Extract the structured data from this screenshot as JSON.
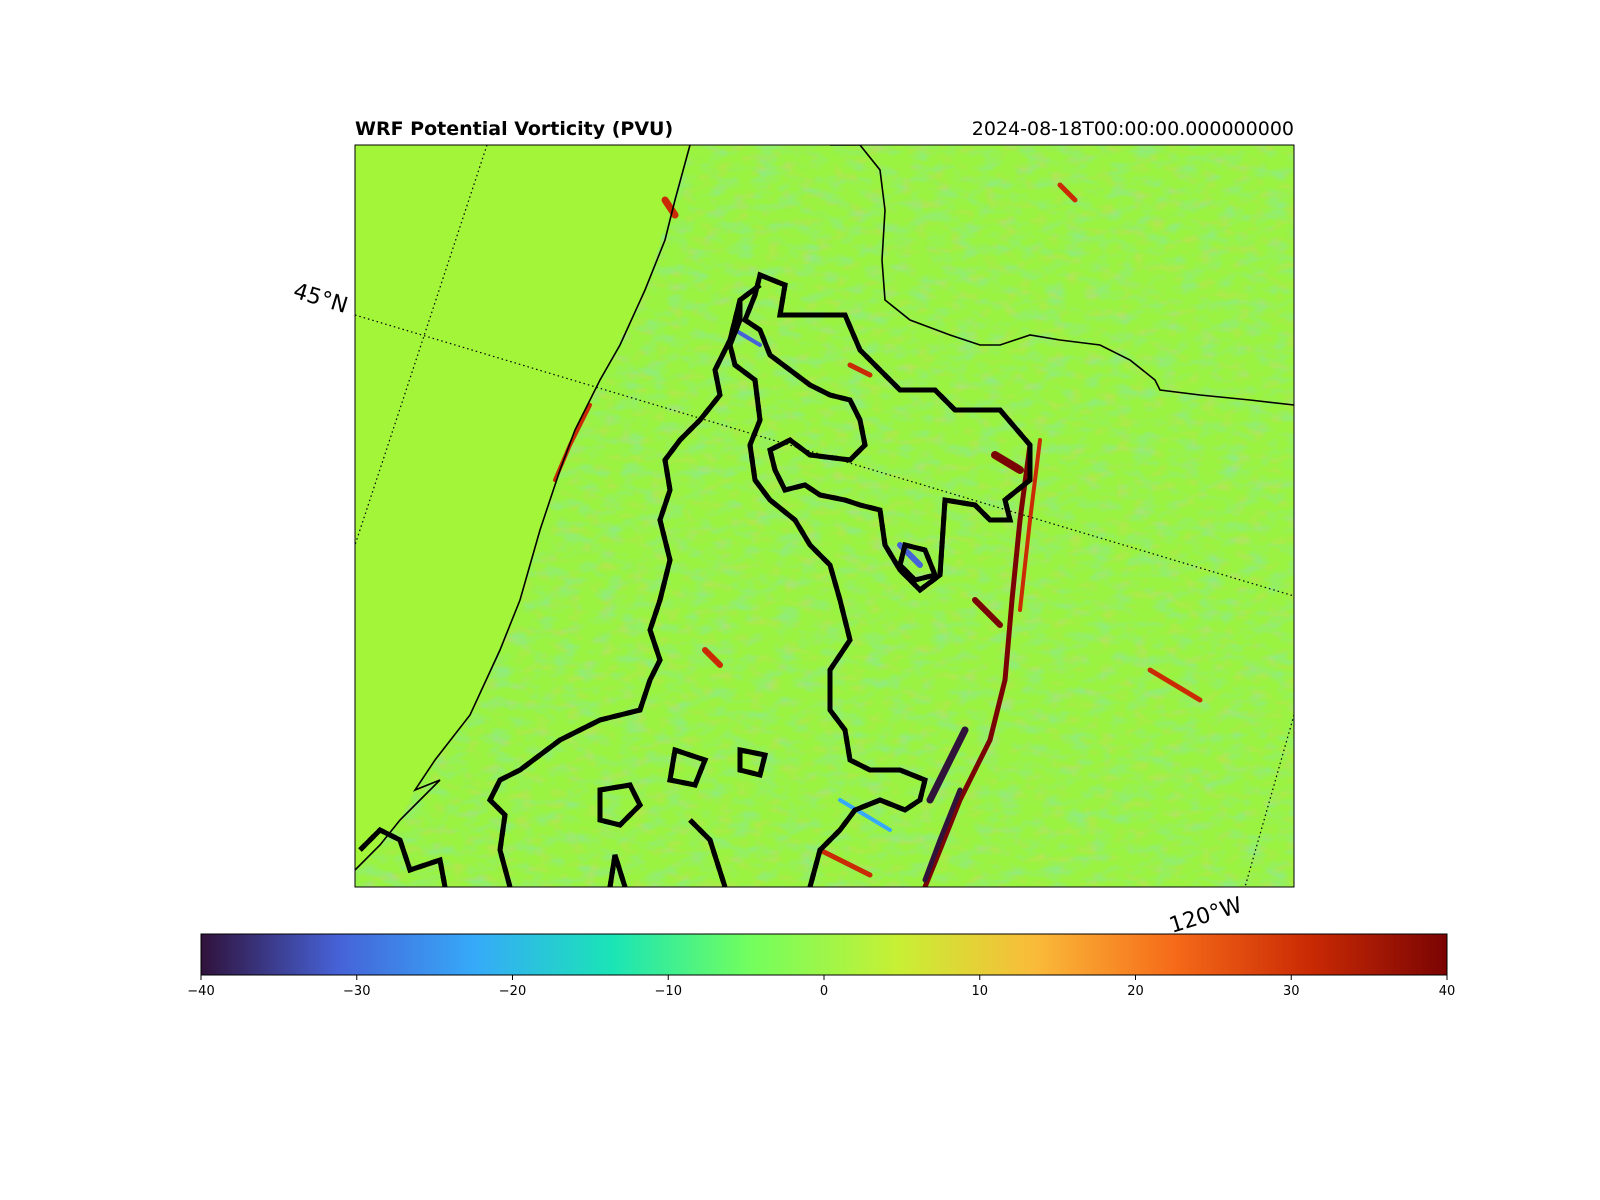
{
  "figure": {
    "title": "WRF Potential Vorticity (PVU)",
    "timestamp": "2024-08-18T00:00:00.000000000"
  },
  "map": {
    "type": "raster field with projected map overlay",
    "variable_label": "WRF Potential Vorticity (PVU)",
    "background_color": "#a3f53a",
    "gridline_labels": {
      "lat": "45°N",
      "lon": "120°W"
    },
    "gridline_style": "dotted",
    "boundaries": [
      "coastline",
      "state border"
    ],
    "contour_style": "white dashed over black"
  },
  "colorbar": {
    "orientation": "horizontal",
    "colormap": "turbo",
    "range": [
      -40,
      40
    ],
    "ticks": [
      -40,
      -30,
      -20,
      -10,
      0,
      10,
      20,
      30,
      40
    ],
    "tick_labels": [
      "−40",
      "−30",
      "−20",
      "−10",
      "0",
      "10",
      "20",
      "30",
      "40"
    ],
    "color_stops": [
      "#30123b",
      "#4662d7",
      "#36aaf9",
      "#1ae4b6",
      "#72fe5e",
      "#c8ef34",
      "#faba39",
      "#f66b19",
      "#ca2a04",
      "#7a0403"
    ]
  }
}
